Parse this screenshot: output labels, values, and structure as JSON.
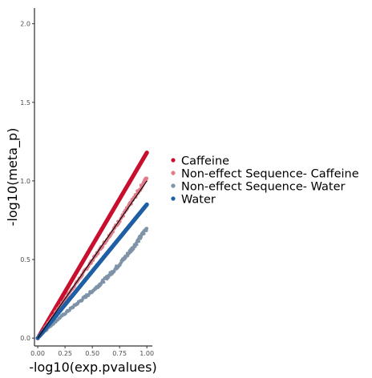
{
  "chart_data": {
    "type": "scatter",
    "xlabel": "-log10(exp.pvalues)",
    "ylabel": "-log10(meta_p)",
    "xlim": [
      -0.03,
      1.05
    ],
    "ylim": [
      -0.05,
      2.1
    ],
    "x_ticks": [
      "0.00",
      "0.25",
      "0.50",
      "0.75",
      "1.00"
    ],
    "y_ticks": [
      "0.0",
      "0.5",
      "1.0",
      "1.5",
      "2.0"
    ],
    "grid": false,
    "legend_position": "right",
    "reference_line": {
      "slope": 1,
      "intercept": 0,
      "color": "#000000"
    },
    "series": [
      {
        "name": "Caffeine",
        "color": "#c8102e",
        "slope": 1.18,
        "curve": 0.0,
        "noise": 0.0,
        "size": 2.6
      },
      {
        "name": "Non-effect Sequence- Caffeine",
        "color": "#e07b8a",
        "slope": 1.02,
        "curve": 0.03,
        "noise": 0.012,
        "size": 1.9
      },
      {
        "name": "Non-effect Sequence- Water",
        "color": "#7f93a8",
        "slope": 0.7,
        "curve": 0.1,
        "noise": 0.012,
        "size": 1.9
      },
      {
        "name": "Water",
        "color": "#1f5fa5",
        "slope": 0.85,
        "curve": 0.0,
        "noise": 0.0,
        "size": 2.6
      }
    ]
  }
}
